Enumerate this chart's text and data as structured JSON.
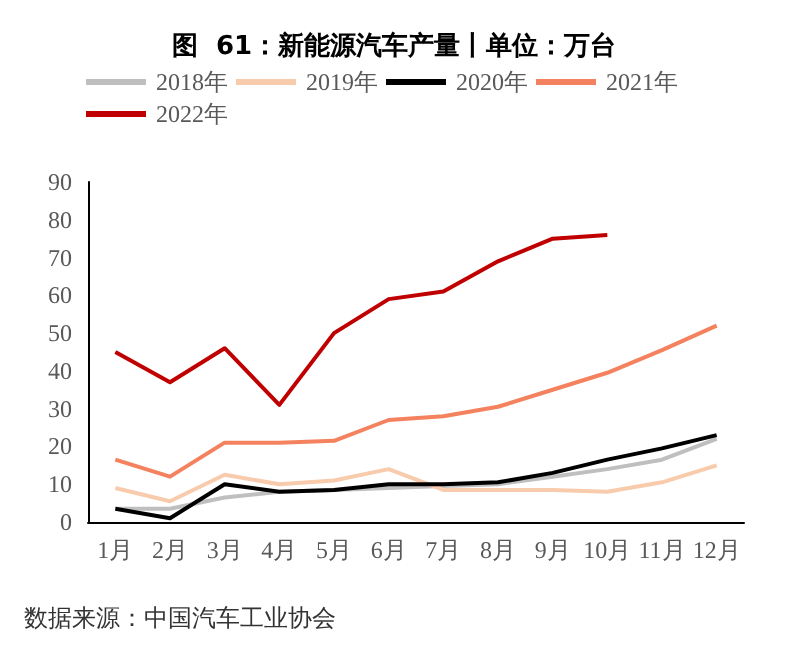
{
  "chart_data": {
    "type": "line",
    "title": "图  61：新能源汽车产量丨单位：万台",
    "categories": [
      "1月",
      "2月",
      "3月",
      "4月",
      "5月",
      "6月",
      "7月",
      "8月",
      "9月",
      "10月",
      "11月",
      "12月"
    ],
    "series": [
      {
        "name": "2018年",
        "color": "#bfbfbf",
        "values": [
          3.5,
          3.5,
          6.5,
          8,
          8.5,
          9,
          9.5,
          10,
          12,
          14,
          16.5,
          22
        ]
      },
      {
        "name": "2019年",
        "color": "#f8cbad",
        "values": [
          9,
          5.5,
          12.5,
          10,
          11,
          14,
          8.5,
          8.5,
          8.5,
          8,
          10.5,
          15
        ]
      },
      {
        "name": "2020年",
        "color": "#000000",
        "values": [
          3.5,
          1,
          10,
          8,
          8.5,
          10,
          10,
          10.5,
          13,
          16.5,
          19.5,
          23
        ]
      },
      {
        "name": "2021年",
        "color": "#f4825e",
        "values": [
          16.5,
          12,
          21,
          21,
          21.5,
          27,
          28,
          30.5,
          35,
          39.5,
          45.5,
          52
        ]
      },
      {
        "name": "2022年",
        "color": "#c00000",
        "values": [
          45,
          37,
          46,
          31,
          50,
          59,
          61,
          69,
          75,
          76,
          null,
          null
        ]
      }
    ],
    "ylim": [
      0,
      90
    ],
    "yticks": [
      0,
      10,
      20,
      30,
      40,
      50,
      60,
      70,
      80,
      90
    ],
    "grid": false,
    "legend": "top",
    "marker": "none",
    "line_style": "solid",
    "annotations": [
      "数据来源：中国汽车工业协会"
    ]
  }
}
